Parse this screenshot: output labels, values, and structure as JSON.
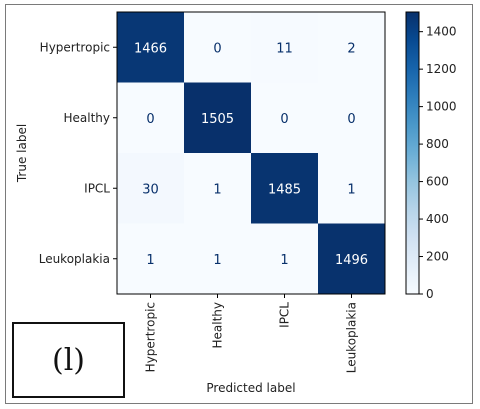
{
  "chart_data": {
    "type": "heatmap",
    "title": "",
    "xlabel": "Predicted label",
    "ylabel": "True label",
    "x_categories": [
      "Hypertropic",
      "Healthy",
      "IPCL",
      "Leukoplakia"
    ],
    "y_categories": [
      "Hypertropic",
      "Healthy",
      "IPCL",
      "Leukoplakia"
    ],
    "values": [
      [
        1466,
        0,
        11,
        2
      ],
      [
        0,
        1505,
        0,
        0
      ],
      [
        30,
        1,
        1485,
        1
      ],
      [
        1,
        1,
        1,
        1496
      ]
    ],
    "colorbar": {
      "min": 0,
      "max": 1505,
      "ticks": [
        0,
        200,
        400,
        600,
        800,
        1000,
        1200,
        1400
      ]
    },
    "colormap": "Blues",
    "color_low": "#f7fbff",
    "color_high": "#08306b",
    "text_dark": "#08306b",
    "text_light": "#ffffff"
  },
  "panel_label": "(l)"
}
